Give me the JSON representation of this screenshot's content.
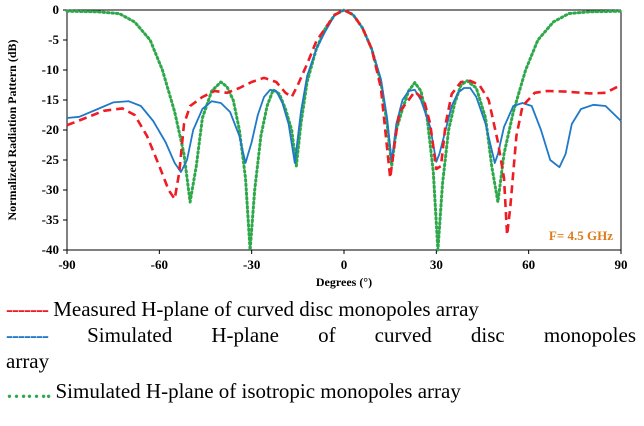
{
  "chart_data": {
    "type": "line",
    "ylabel": "Normalized Radiation Pattern (dB)",
    "xlabel": "Degrees (°)",
    "xlim": [
      -90,
      90
    ],
    "ylim": [
      -40,
      0
    ],
    "x_ticks": [
      "-90",
      "-60",
      "-30",
      "0",
      "30",
      "60",
      "90"
    ],
    "y_ticks": [
      "0",
      "-5",
      "-10",
      "-15",
      "-20",
      "-25",
      "-30",
      "-35",
      "-40"
    ],
    "grid": false,
    "annotation": "F= 4.5 GHz",
    "annotation_color": "#e07b1a",
    "series": [
      {
        "name": "Measured H-plane of curved disc monopoles array",
        "color": "#ee1c24",
        "dash": "dashed",
        "points": [
          [
            -90,
            -19.2
          ],
          [
            -84,
            -18
          ],
          [
            -78,
            -16.8
          ],
          [
            -72,
            -16.4
          ],
          [
            -68,
            -17.5
          ],
          [
            -64,
            -21
          ],
          [
            -60,
            -26
          ],
          [
            -57,
            -30
          ],
          [
            -55,
            -31.5
          ],
          [
            -53.5,
            -27
          ],
          [
            -52,
            -19
          ],
          [
            -50,
            -16
          ],
          [
            -46,
            -14.5
          ],
          [
            -42,
            -13.5
          ],
          [
            -38,
            -13.8
          ],
          [
            -34,
            -13
          ],
          [
            -30,
            -12
          ],
          [
            -26,
            -11.3
          ],
          [
            -22,
            -12
          ],
          [
            -19,
            -13.8
          ],
          [
            -17,
            -14.5
          ],
          [
            -15,
            -12.5
          ],
          [
            -12,
            -9
          ],
          [
            -9,
            -5.2
          ],
          [
            -6,
            -3
          ],
          [
            -3,
            -0.8
          ],
          [
            0,
            0
          ],
          [
            3,
            -0.8
          ],
          [
            6,
            -3
          ],
          [
            9,
            -6.5
          ],
          [
            12,
            -13
          ],
          [
            14,
            -23
          ],
          [
            15,
            -28
          ],
          [
            16.5,
            -22
          ],
          [
            18,
            -17
          ],
          [
            21,
            -15
          ],
          [
            23,
            -13.6
          ],
          [
            26,
            -15
          ],
          [
            28,
            -19
          ],
          [
            30,
            -26.5
          ],
          [
            31.5,
            -26
          ],
          [
            33,
            -19
          ],
          [
            35,
            -14
          ],
          [
            38,
            -12
          ],
          [
            41,
            -11.8
          ],
          [
            44,
            -12.5
          ],
          [
            47,
            -15
          ],
          [
            50,
            -22
          ],
          [
            52,
            -28
          ],
          [
            53,
            -37.5
          ],
          [
            54,
            -33
          ],
          [
            56,
            -21
          ],
          [
            58,
            -16
          ],
          [
            62,
            -13.8
          ],
          [
            66,
            -13.5
          ],
          [
            72,
            -13.6
          ],
          [
            80,
            -13.9
          ],
          [
            85,
            -13.8
          ],
          [
            90,
            -12.5
          ]
        ]
      },
      {
        "name": "Simulated H-plane of curved disc monopoles array",
        "color": "#1f78c8",
        "dash": "solid",
        "points": [
          [
            -90,
            -18
          ],
          [
            -86,
            -17.8
          ],
          [
            -80,
            -16.5
          ],
          [
            -75,
            -15.4
          ],
          [
            -70,
            -15.2
          ],
          [
            -66,
            -16
          ],
          [
            -62,
            -18.5
          ],
          [
            -58,
            -22
          ],
          [
            -55,
            -25.5
          ],
          [
            -53,
            -27
          ],
          [
            -51,
            -25
          ],
          [
            -49,
            -20
          ],
          [
            -46,
            -16.5
          ],
          [
            -43,
            -15.2
          ],
          [
            -40,
            -15.5
          ],
          [
            -37,
            -17
          ],
          [
            -34,
            -21
          ],
          [
            -32,
            -25.5
          ],
          [
            -30,
            -22
          ],
          [
            -28,
            -17.5
          ],
          [
            -26,
            -14.5
          ],
          [
            -24,
            -13.3
          ],
          [
            -22,
            -13.5
          ],
          [
            -20,
            -15.5
          ],
          [
            -18,
            -19
          ],
          [
            -16,
            -25.5
          ],
          [
            -14,
            -17
          ],
          [
            -12,
            -11
          ],
          [
            -9,
            -6.5
          ],
          [
            -6,
            -3.5
          ],
          [
            -3,
            -0.8
          ],
          [
            0,
            0
          ],
          [
            3,
            -0.8
          ],
          [
            6,
            -3
          ],
          [
            9,
            -6.5
          ],
          [
            12,
            -11.5
          ],
          [
            14,
            -18
          ],
          [
            15.5,
            -25.3
          ],
          [
            17,
            -19
          ],
          [
            19,
            -15
          ],
          [
            21,
            -13.5
          ],
          [
            23,
            -13.3
          ],
          [
            25,
            -15
          ],
          [
            28,
            -19.5
          ],
          [
            30,
            -25.3
          ],
          [
            31,
            -24
          ],
          [
            33,
            -20
          ],
          [
            35,
            -16
          ],
          [
            37,
            -13.8
          ],
          [
            39,
            -13
          ],
          [
            41,
            -13
          ],
          [
            43,
            -14.5
          ],
          [
            46,
            -19
          ],
          [
            49,
            -25.5
          ],
          [
            50,
            -24
          ],
          [
            52,
            -19.5
          ],
          [
            55,
            -16
          ],
          [
            58,
            -15.5
          ],
          [
            61,
            -16
          ],
          [
            64,
            -20
          ],
          [
            67,
            -25
          ],
          [
            70,
            -26.2
          ],
          [
            72,
            -24
          ],
          [
            74,
            -19
          ],
          [
            77,
            -16.5
          ],
          [
            81,
            -15.8
          ],
          [
            85,
            -16
          ],
          [
            90,
            -18.5
          ]
        ]
      },
      {
        "name": "Simulated H-plane of isotropic monopoles array",
        "color": "#2ea84a",
        "dash": "dotted",
        "points": [
          [
            -90,
            -0.2
          ],
          [
            -80,
            -0.3
          ],
          [
            -73,
            -0.6
          ],
          [
            -68,
            -2
          ],
          [
            -63,
            -5
          ],
          [
            -59,
            -10
          ],
          [
            -55,
            -17
          ],
          [
            -52,
            -24
          ],
          [
            -50,
            -32
          ],
          [
            -48,
            -26
          ],
          [
            -46,
            -18
          ],
          [
            -43,
            -13.5
          ],
          [
            -40,
            -12
          ],
          [
            -38,
            -12.8
          ],
          [
            -36,
            -15
          ],
          [
            -34,
            -20
          ],
          [
            -32,
            -28
          ],
          [
            -30.5,
            -40
          ],
          [
            -29,
            -30
          ],
          [
            -27,
            -21
          ],
          [
            -25,
            -16
          ],
          [
            -23,
            -13.3
          ],
          [
            -21,
            -14
          ],
          [
            -19,
            -16.5
          ],
          [
            -17,
            -20
          ],
          [
            -15.5,
            -26
          ],
          [
            -14,
            -19
          ],
          [
            -12,
            -12
          ],
          [
            -9,
            -6.5
          ],
          [
            -6,
            -3
          ],
          [
            -3,
            -0.8
          ],
          [
            0,
            0
          ],
          [
            3,
            -0.8
          ],
          [
            6,
            -3
          ],
          [
            9,
            -6.5
          ],
          [
            12,
            -12
          ],
          [
            14,
            -19
          ],
          [
            15.5,
            -26
          ],
          [
            17,
            -20
          ],
          [
            19,
            -16.5
          ],
          [
            21,
            -13.5
          ],
          [
            23,
            -12.1
          ],
          [
            25,
            -13.5
          ],
          [
            27,
            -18
          ],
          [
            29,
            -27
          ],
          [
            30.5,
            -40
          ],
          [
            32,
            -29
          ],
          [
            34,
            -20
          ],
          [
            36,
            -15.5
          ],
          [
            38,
            -12.5
          ],
          [
            40,
            -11.8
          ],
          [
            43,
            -13
          ],
          [
            46,
            -18
          ],
          [
            48,
            -26
          ],
          [
            50,
            -32
          ],
          [
            52,
            -24
          ],
          [
            55,
            -17
          ],
          [
            59,
            -10
          ],
          [
            63,
            -5
          ],
          [
            68,
            -2
          ],
          [
            73,
            -0.6
          ],
          [
            80,
            -0.3
          ],
          [
            90,
            -0.2
          ]
        ]
      }
    ]
  },
  "legend": {
    "item1_key": "-------",
    "item1_text": "Measured H-plane of curved disc monopoles array",
    "item2_key": "-------",
    "item2_text": "Simulated H-plane of curved disc monopoles",
    "item2_text_cont": "array",
    "item3_key": "…….",
    "item3_text": "Simulated H-plane of isotropic monopoles array"
  }
}
